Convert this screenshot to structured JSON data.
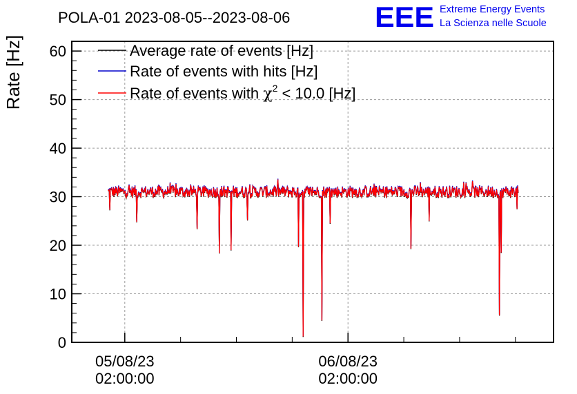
{
  "chart_data": {
    "type": "line",
    "title": "POLA-01 2023-08-05--2023-08-06",
    "ylabel": "Rate [Hz]",
    "xlabel": "",
    "ylim": [
      0,
      62
    ],
    "yticks": [
      0,
      10,
      20,
      30,
      40,
      50,
      60
    ],
    "xticks": [
      {
        "date": "05/08/23",
        "time": "02:00:00",
        "hours": 0
      },
      {
        "date": "06/08/23",
        "time": "02:00:00",
        "hours": 24
      }
    ],
    "xlim_hours": [
      -5.7,
      46.1
    ],
    "grid": true,
    "legend_position": "top-left",
    "series": [
      {
        "name": "Average rate of events [Hz]",
        "color": "#000000"
      },
      {
        "name": "Rate of events with hits [Hz]",
        "color": "#0000cc"
      },
      {
        "name_prefix": "Rate of events with ",
        "name_symbol": "χ",
        "name_sup": "2",
        "name_suffix": " < 10.0 [Hz]",
        "color": "#ff0000"
      }
    ],
    "data": {
      "x_start_hours": -1.8,
      "x_end_hours": 42.3,
      "baseline_hz": 31,
      "dips": [
        {
          "x_hours": -1.6,
          "y": 27.3
        },
        {
          "x_hours": 1.3,
          "y": 24.8
        },
        {
          "x_hours": 7.8,
          "y": 23.4
        },
        {
          "x_hours": 10.2,
          "y": 18.4
        },
        {
          "x_hours": 11.4,
          "y": 19.0
        },
        {
          "x_hours": 13.2,
          "y": 25.2
        },
        {
          "x_hours": 18.7,
          "y": 19.7
        },
        {
          "x_hours": 19.2,
          "y": 1.2
        },
        {
          "x_hours": 21.2,
          "y": 4.5
        },
        {
          "x_hours": 22.1,
          "y": 24.5
        },
        {
          "x_hours": 30.8,
          "y": 19.3
        },
        {
          "x_hours": 32.7,
          "y": 25.0
        },
        {
          "x_hours": 40.3,
          "y": 5.6
        },
        {
          "x_hours": 40.5,
          "y": 18.5
        },
        {
          "x_hours": 42.2,
          "y": 27.5
        }
      ]
    }
  },
  "branding": {
    "logo": "EEE",
    "line1": "Extreme Energy Events",
    "line2": "La Scienza nelle Scuole",
    "color": "#0000ee"
  }
}
